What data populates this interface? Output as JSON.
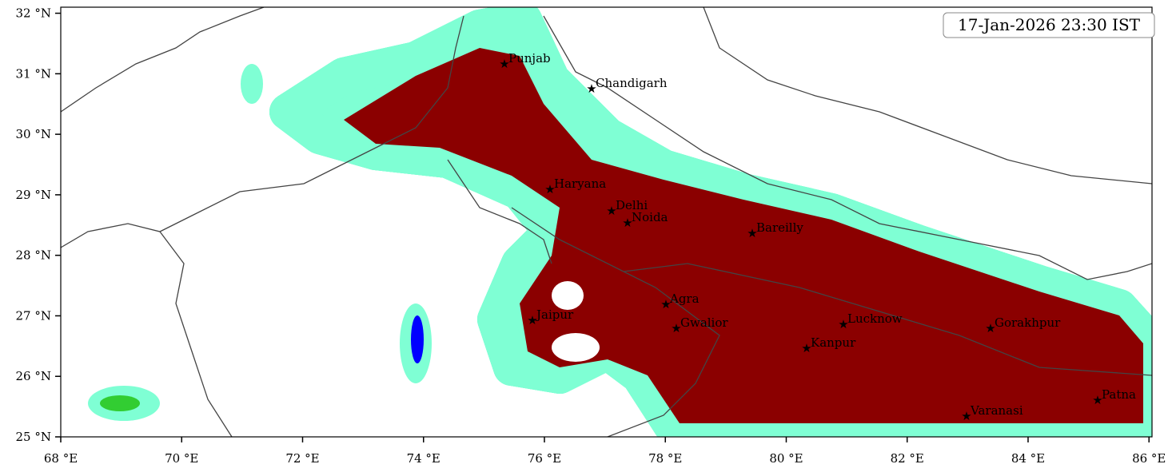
{
  "map": {
    "timestamp": "17-Jan-2026 23:30 IST",
    "xlim": [
      68,
      86.05
    ],
    "ylim": [
      25,
      32.1
    ],
    "xticks": [
      {
        "value": 68,
        "label": "68 °E"
      },
      {
        "value": 70,
        "label": "70 °E"
      },
      {
        "value": 72,
        "label": "72 °E"
      },
      {
        "value": 74,
        "label": "74 °E"
      },
      {
        "value": 76,
        "label": "76 °E"
      },
      {
        "value": 78,
        "label": "78 °E"
      },
      {
        "value": 80,
        "label": "80 °E"
      },
      {
        "value": 82,
        "label": "82 °E"
      },
      {
        "value": 84,
        "label": "84 °E"
      },
      {
        "value": 86,
        "label": "86 °E"
      }
    ],
    "yticks": [
      {
        "value": 25,
        "label": "25 °N"
      },
      {
        "value": 26,
        "label": "26 °N"
      },
      {
        "value": 27,
        "label": "27 °N"
      },
      {
        "value": 28,
        "label": "28 °N"
      },
      {
        "value": 29,
        "label": "29 °N"
      },
      {
        "value": 30,
        "label": "30 °N"
      },
      {
        "value": 31,
        "label": "31 °N"
      },
      {
        "value": 32,
        "label": "32 °N"
      }
    ],
    "cities": [
      "Punjab",
      "Chandigarh",
      "Haryana",
      "Delhi",
      "Noida",
      "Bareilly",
      "Agra",
      "Jaipur",
      "Gwalior",
      "Lucknow",
      "Kanpur",
      "Gorakhpur",
      "Patna",
      "Varanasi"
    ]
  }
}
